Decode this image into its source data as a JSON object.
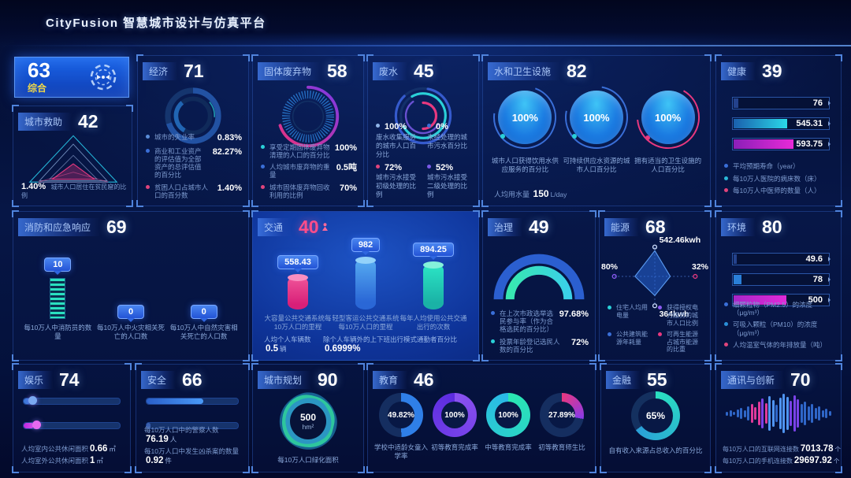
{
  "header": {
    "title": "CityFusion 智慧城市设计与仿真平台"
  },
  "composite": {
    "score": "63",
    "label": "综合"
  },
  "city_aid": {
    "title": "城市救助",
    "score": "42",
    "stat_value": "1.40%",
    "stat_label": "城市人口居住在贫民窟的比例"
  },
  "economy": {
    "title": "经济",
    "score": "71",
    "items": [
      {
        "label": "城市的失业率",
        "value": "0.83%"
      },
      {
        "label": "商业和工业资产的评估值为全部资产的总评估值的百分比",
        "value": "82.27%"
      },
      {
        "label": "贫困人口占城市人口的百分数",
        "value": "1.40%"
      }
    ]
  },
  "solid_waste": {
    "title": "固体废弃物",
    "score": "58",
    "items": [
      {
        "label": "享受定期固体废弃物清理的人口的百分比",
        "value": "100%"
      },
      {
        "label": "人均城市废弃物的重量",
        "value": "0.5吨"
      },
      {
        "label": "城市固体废弃物回收利用的比例",
        "value": "70%"
      }
    ]
  },
  "wastewater": {
    "title": "废水",
    "score": "45",
    "items": [
      {
        "value": "100%",
        "label": "废水收集服务的城市人口百分比"
      },
      {
        "value": "0%",
        "label": "未经处理的城市污水百分比"
      },
      {
        "value": "72%",
        "label": "城市污水接受初级处理的比例"
      },
      {
        "value": "52%",
        "label": "城市污水接受二级处理的比例"
      }
    ]
  },
  "water": {
    "title": "水和卫生设施",
    "score": "82",
    "gauges": [
      {
        "value": "100%",
        "label": "城市人口获得饮用水供应服务的百分比"
      },
      {
        "value": "100%",
        "label": "可持续供应水资源的城市人口百分比"
      },
      {
        "value": "100%",
        "label": "拥有适当的卫生设施的人口百分比"
      }
    ],
    "extra_label": "人均用水量",
    "extra_value": "150",
    "extra_unit": "L/day"
  },
  "health": {
    "title": "健康",
    "score": "39",
    "bars": [
      {
        "value": "76"
      },
      {
        "value": "545.31"
      },
      {
        "value": "593.75"
      }
    ],
    "legend": [
      {
        "label": "平均预期寿命（year）"
      },
      {
        "label": "每10万人医院的病床数（床）"
      },
      {
        "label": "每10万人中医师的数量（人）"
      }
    ]
  },
  "fire": {
    "title": "消防和应急响应",
    "score": "69",
    "items": [
      {
        "value": "10",
        "label": "每10万人中消防员的数量"
      },
      {
        "value": "0",
        "label": "每10万人中火灾相关死亡的人口数"
      },
      {
        "value": "0",
        "label": "每10万人中自然灾害相关死亡的人口数"
      }
    ]
  },
  "traffic": {
    "title": "交通",
    "score": "40",
    "bars": [
      {
        "value": "558.43",
        "label": "大容量公共交通系统每10万人口的里程"
      },
      {
        "value": "982",
        "label": "轻型客运公共交通系统每10万人口的里程"
      },
      {
        "value": "894.25",
        "label": "每年人均使用公共交通出行的次数"
      }
    ],
    "stats": [
      {
        "label": "人均个人车辆数",
        "value": "0.5",
        "unit": "辆"
      },
      {
        "label": "除个人车辆外的上下班出行模式通勤者百分比",
        "value": "0.6999%",
        "unit": ""
      }
    ]
  },
  "governance": {
    "title": "治理",
    "score": "49",
    "items": [
      {
        "label": "在上次市政选举选民参与率（作为合格选民的百分比）",
        "value": "97.68%"
      },
      {
        "label": "投票年龄登记选民人数的百分比",
        "value": "72%"
      }
    ]
  },
  "energy": {
    "title": "能源",
    "score": "68",
    "axis_top": "542.46kwh",
    "axis_right": "32%",
    "axis_bottom": "364kwh",
    "axis_left": "80%",
    "legend": [
      {
        "label": "住宅人均用电量"
      },
      {
        "label": "获得授权电力服务的城市人口比例"
      },
      {
        "label": "公共建筑能源年耗量"
      },
      {
        "label": "可再生能源占城市能源的比重"
      }
    ]
  },
  "environment": {
    "title": "环境",
    "score": "80",
    "bars": [
      {
        "value": "49.6"
      },
      {
        "value": "78"
      },
      {
        "value": "500"
      }
    ],
    "legend": [
      {
        "label": "细颗粒物（PM2.5）的浓度（μg/m³）"
      },
      {
        "label": "可吸入颗粒（PM10）的浓度（μg/m³）"
      },
      {
        "label": "人均温室气体的年排放量（吨）"
      }
    ]
  },
  "recreation": {
    "title": "娱乐",
    "score": "74",
    "items": [
      {
        "label": "人均室内公共休闲面积",
        "value": "0.66",
        "unit": "㎡"
      },
      {
        "label": "人均室外公共休闲面积",
        "value": "1",
        "unit": "㎡"
      }
    ]
  },
  "safety": {
    "title": "安全",
    "score": "66",
    "items": [
      {
        "label": "每10万人口中的警察人数",
        "value": "76.19",
        "unit": "人"
      },
      {
        "label": "每10万人口中发生凶杀案的数量",
        "value": "0.92",
        "unit": "件"
      }
    ]
  },
  "urban": {
    "title": "城市规划",
    "score": "90",
    "center_value": "500",
    "center_unit": "hm²",
    "label": "每10万人口绿化面积"
  },
  "education": {
    "title": "教育",
    "score": "46",
    "donuts": [
      {
        "value": "49.82%",
        "label": "学校中适龄女童入学率"
      },
      {
        "value": "100%",
        "label": "初等教育完成率"
      },
      {
        "value": "100%",
        "label": "中等教育完成率"
      },
      {
        "value": "27.89%",
        "label": "初等教育师生比"
      }
    ]
  },
  "finance": {
    "title": "金融",
    "score": "55",
    "donut_value": "65%",
    "label": "自有收入来源占总收入的百分比"
  },
  "telecom": {
    "title": "通讯与创新",
    "score": "70",
    "items": [
      {
        "label": "每10万人口的互联网连接数",
        "value": "7013.78",
        "unit": "个"
      },
      {
        "label": "每10万人口的手机连接数",
        "value": "29697.92",
        "unit": "个"
      }
    ],
    "waveform": [
      [
        5,
        "b"
      ],
      [
        8,
        "b"
      ],
      [
        4,
        "b"
      ],
      [
        10,
        "b"
      ],
      [
        14,
        "b"
      ],
      [
        9,
        "b"
      ],
      [
        18,
        "b"
      ],
      [
        24,
        "m"
      ],
      [
        16,
        "m"
      ],
      [
        30,
        "m"
      ],
      [
        38,
        "p"
      ],
      [
        26,
        "m"
      ],
      [
        44,
        "B"
      ],
      [
        34,
        "B"
      ],
      [
        22,
        "b"
      ],
      [
        40,
        "B"
      ],
      [
        50,
        "B"
      ],
      [
        42,
        "B"
      ],
      [
        32,
        "p"
      ],
      [
        46,
        "p"
      ],
      [
        36,
        "p"
      ],
      [
        24,
        "b"
      ],
      [
        30,
        "b"
      ],
      [
        18,
        "b"
      ],
      [
        24,
        "b"
      ],
      [
        14,
        "b"
      ],
      [
        18,
        "b"
      ],
      [
        9,
        "b"
      ],
      [
        12,
        "b"
      ],
      [
        6,
        "b"
      ]
    ],
    "waveform_colors": {
      "b": "#2f66c8",
      "B": "#4f94f0",
      "p": "#7a42e8",
      "m": "#e03a9a"
    }
  }
}
